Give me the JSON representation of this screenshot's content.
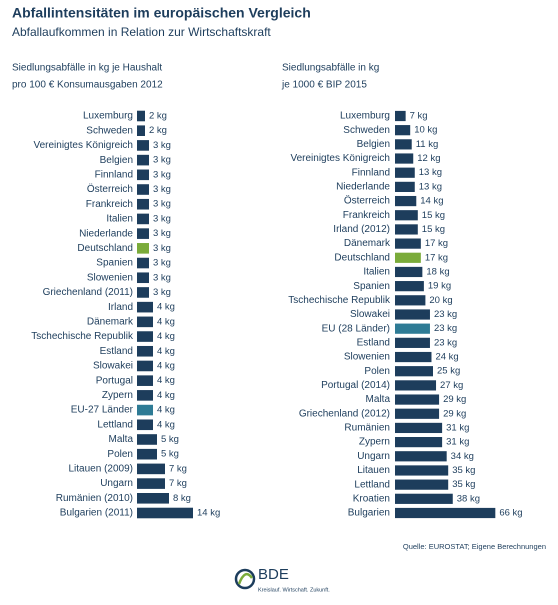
{
  "header": {
    "title": "Abfallintensitäten im europäischen Vergleich",
    "subtitle": "Abfallaufkommen in Relation zur Wirtschaftskraft"
  },
  "chart_data": [
    {
      "type": "bar",
      "orientation": "horizontal",
      "title": [
        "Siedlungsabfälle in kg je Haushalt",
        "pro 100 € Konsumausgaben 2012"
      ],
      "categories": [
        "Luxemburg",
        "Schweden",
        "Vereinigtes Königreich",
        "Belgien",
        "Finnland",
        "Österreich",
        "Frankreich",
        "Italien",
        "Niederlande",
        "Deutschland",
        "Spanien",
        "Slowenien",
        "Griechenland (2011)",
        "Irland",
        "Dänemark",
        "Tschechische Republik",
        "Estland",
        "Slowakei",
        "Portugal",
        "Zypern",
        "EU-27 Länder",
        "Lettland",
        "Malta",
        "Polen",
        "Litauen (2009)",
        "Ungarn",
        "Rumänien (2010)",
        "Bulgarien (2011)"
      ],
      "values": [
        2,
        2,
        3,
        3,
        3,
        3,
        3,
        3,
        3,
        3,
        3,
        3,
        3,
        4,
        4,
        4,
        4,
        4,
        4,
        4,
        4,
        4,
        5,
        5,
        7,
        7,
        8,
        14
      ],
      "value_labels": [
        "2 kg",
        "2 kg",
        "3 kg",
        "3 kg",
        "3 kg",
        "3 kg",
        "3 kg",
        "3 kg",
        "3 kg",
        "3 kg",
        "3 kg",
        "3 kg",
        "3 kg",
        "4 kg",
        "4 kg",
        "4 kg",
        "4 kg",
        "4 kg",
        "4 kg",
        "4 kg",
        "4 kg",
        "4 kg",
        "5 kg",
        "5 kg",
        "7 kg",
        "7 kg",
        "8 kg",
        "14 kg"
      ],
      "colors": [
        "#1d3d5c",
        "#1d3d5c",
        "#1d3d5c",
        "#1d3d5c",
        "#1d3d5c",
        "#1d3d5c",
        "#1d3d5c",
        "#1d3d5c",
        "#1d3d5c",
        "#7aab3a",
        "#1d3d5c",
        "#1d3d5c",
        "#1d3d5c",
        "#1d3d5c",
        "#1d3d5c",
        "#1d3d5c",
        "#1d3d5c",
        "#1d3d5c",
        "#1d3d5c",
        "#1d3d5c",
        "#2e7b95",
        "#1d3d5c",
        "#1d3d5c",
        "#1d3d5c",
        "#1d3d5c",
        "#1d3d5c",
        "#1d3d5c",
        "#1d3d5c"
      ]
    },
    {
      "type": "bar",
      "orientation": "horizontal",
      "title": [
        "Siedlungsabfälle in kg",
        "je 1000 € BIP 2015"
      ],
      "categories": [
        "Luxemburg",
        "Schweden",
        "Belgien",
        "Vereinigtes Königreich",
        "Finnland",
        "Niederlande",
        "Österreich",
        "Frankreich",
        "Irland (2012)",
        "Dänemark",
        "Deutschland",
        "Italien",
        "Spanien",
        "Tschechische Republik",
        "Slowakei",
        "EU (28 Länder)",
        "Estland",
        "Slowenien",
        "Polen",
        "Portugal (2014)",
        "Malta",
        "Griechenland (2012)",
        "Rumänien",
        "Zypern",
        "Ungarn",
        "Litauen",
        "Lettland",
        "Kroatien",
        "Bulgarien"
      ],
      "values": [
        7,
        10,
        11,
        12,
        13,
        13,
        14,
        15,
        15,
        17,
        17,
        18,
        19,
        20,
        23,
        23,
        23,
        24,
        25,
        27,
        29,
        29,
        31,
        31,
        34,
        35,
        35,
        38,
        66
      ],
      "value_labels": [
        "7 kg",
        "10 kg",
        "11 kg",
        "12 kg",
        "13 kg",
        "13 kg",
        "14 kg",
        "15 kg",
        "15 kg",
        "17 kg",
        "17 kg",
        "18 kg",
        "19 kg",
        "20 kg",
        "23 kg",
        "23 kg",
        "23 kg",
        "24 kg",
        "25 kg",
        "27 kg",
        "29 kg",
        "29 kg",
        "31 kg",
        "31 kg",
        "34 kg",
        "35 kg",
        "35 kg",
        "38 kg",
        "66 kg"
      ],
      "colors": [
        "#1d3d5c",
        "#1d3d5c",
        "#1d3d5c",
        "#1d3d5c",
        "#1d3d5c",
        "#1d3d5c",
        "#1d3d5c",
        "#1d3d5c",
        "#1d3d5c",
        "#1d3d5c",
        "#7aab3a",
        "#1d3d5c",
        "#1d3d5c",
        "#1d3d5c",
        "#1d3d5c",
        "#2e7b95",
        "#1d3d5c",
        "#1d3d5c",
        "#1d3d5c",
        "#1d3d5c",
        "#1d3d5c",
        "#1d3d5c",
        "#1d3d5c",
        "#1d3d5c",
        "#1d3d5c",
        "#1d3d5c",
        "#1d3d5c",
        "#1d3d5c",
        "#1d3d5c"
      ]
    }
  ],
  "source": "Quelle: EUROSTAT; Eigene Berechnungen",
  "logo": {
    "name": "BDE",
    "tagline": "Kreislauf. Wirtschaft. Zukunft."
  }
}
